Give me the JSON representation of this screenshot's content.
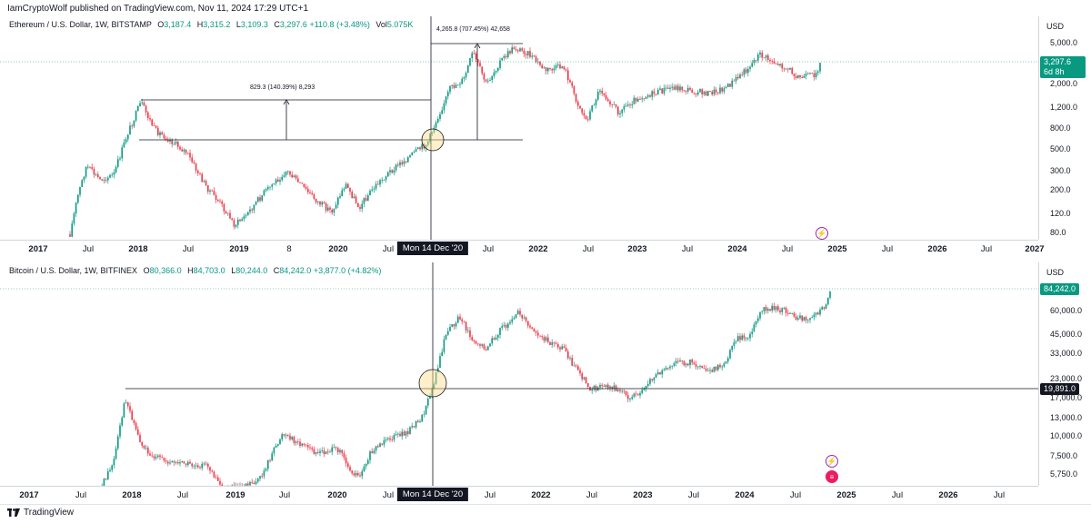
{
  "header": {
    "published": "IamCryptoWolf published on TradingView.com, Nov 11, 2024 17:29 UTC+1"
  },
  "colors": {
    "up": "#089981",
    "down": "#f23645",
    "line": "#131722",
    "level": "#089981"
  },
  "eth": {
    "legend": {
      "symbol": "Ethereum / U.S. Dollar, 1W, BITSTAMP",
      "o_label": "O",
      "o": "3,187.4",
      "h_label": "H",
      "h": "3,315.2",
      "l_label": "L",
      "l": "3,109.3",
      "c_label": "C",
      "c": "3,297.6",
      "change": "+110.8 (+3.48%)",
      "vol_label": "Vol",
      "vol": "5.075K"
    },
    "currency": "USD",
    "price_ticks": [
      "5,000.0",
      "2,000.0",
      "1,200.0",
      "800.0",
      "500.0",
      "300.0",
      "200.0",
      "120.0",
      "80.0"
    ],
    "last_price": "3,297.6",
    "countdown": "6d 8h",
    "time_labels": [
      "2017",
      "Jul",
      "2018",
      "Jul",
      "2019",
      "8",
      "2020",
      "Jul",
      "Mon 14 Dec '20",
      "Jul",
      "2022",
      "Jul",
      "2023",
      "Jul",
      "2024",
      "Jul",
      "2025",
      "Jul",
      "2026",
      "Jul",
      "2027"
    ],
    "measure_1": "829.3 (140.39%) 8,293",
    "measure_2": "4,265.8 (707.45%) 42,658"
  },
  "btc": {
    "legend": {
      "symbol": "Bitcoin / U.S. Dollar, 1W, BITFINEX",
      "o_label": "O",
      "o": "80,366.0",
      "h_label": "H",
      "h": "84,703.0",
      "l_label": "L",
      "l": "80,244.0",
      "c_label": "C",
      "c": "84,242.0",
      "change": "+3,877.0 (+4.82%)"
    },
    "currency": "USD",
    "price_ticks": [
      "60,000.0",
      "45,000.0",
      "33,000.0",
      "23,000.0",
      "17,000.0",
      "13,000.0",
      "10,000.0",
      "7,500.0",
      "5,750.0"
    ],
    "last_price": "84,242.0",
    "level_price": "19,891.0",
    "time_labels": [
      "2017",
      "Jul",
      "2018",
      "Jul",
      "2019",
      "Jul",
      "2020",
      "Jul",
      "Mon 14 Dec '20",
      "Jul",
      "2022",
      "Jul",
      "2023",
      "Jul",
      "2024",
      "Jul",
      "2025",
      "Jul",
      "2026",
      "Jul"
    ]
  },
  "footer": {
    "brand": "TradingView"
  }
}
